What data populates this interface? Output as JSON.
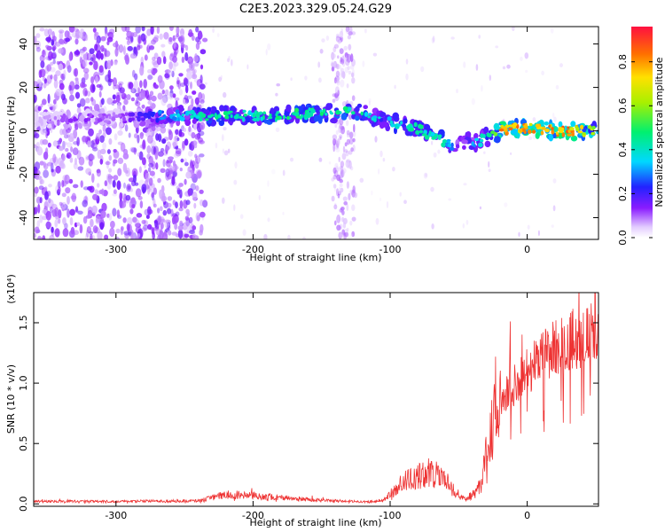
{
  "title": "C2E3.2023.329.05.24.G29",
  "chart_data": [
    {
      "type": "heatmap",
      "xlabel": "Height of straight line (km)",
      "ylabel": "Frequency (Hz)",
      "xlim": [
        -360,
        52
      ],
      "ylim": [
        -50,
        48
      ],
      "xticks": [
        -300,
        -200,
        -100,
        0
      ],
      "yticks": [
        -40,
        -20,
        0,
        20,
        40
      ],
      "colorbar": {
        "label": "Normalized spectral amplitude",
        "range": [
          0.0,
          0.96
        ],
        "ticks": [
          0.0,
          0.2,
          0.4,
          0.6,
          0.8
        ]
      },
      "signal_track": {
        "x": [
          -360,
          -330,
          -300,
          -260,
          -240,
          -220,
          -200,
          -180,
          -160,
          -140,
          -125,
          -110,
          -100,
          -90,
          -80,
          -70,
          -60,
          -55,
          -50,
          -45,
          -40,
          -35,
          -30,
          -20,
          -10,
          0,
          10,
          20,
          30,
          40,
          52
        ],
        "freq": [
          5,
          5,
          6,
          7,
          7,
          7,
          7,
          7,
          8,
          8,
          9,
          6,
          4,
          3,
          1,
          -2,
          -5,
          -7,
          -5,
          -4,
          -6,
          -5,
          -3,
          0,
          1,
          1,
          1,
          0,
          0,
          0,
          1
        ],
        "amplitude": [
          0.05,
          0.15,
          0.1,
          0.35,
          0.45,
          0.5,
          0.45,
          0.5,
          0.5,
          0.5,
          0.5,
          0.4,
          0.4,
          0.45,
          0.5,
          0.45,
          0.45,
          0.3,
          0.3,
          0.35,
          0.35,
          0.4,
          0.45,
          0.85,
          0.9,
          0.85,
          0.85,
          0.9,
          0.9,
          0.75,
          0.65
        ]
      }
    },
    {
      "type": "line",
      "xlabel": "Height of straight line (km)",
      "ylabel": "SNR (10 * v/v)",
      "y_scale_label": "(x10⁴)",
      "xlim": [
        -360,
        52
      ],
      "ylim": [
        -200,
        17500
      ],
      "xticks": [
        -300,
        -200,
        -100,
        0
      ],
      "yticks": [
        0,
        5000,
        10000,
        15000
      ],
      "ytick_labels": [
        "0.0",
        "0.5",
        "1.0",
        "1.5"
      ],
      "color": "#ee3333",
      "envelope": {
        "x": [
          -360,
          -300,
          -240,
          -220,
          -200,
          -150,
          -120,
          -105,
          -100,
          -90,
          -80,
          -70,
          -60,
          -50,
          -45,
          -40,
          -35,
          -30,
          -25,
          -20,
          -15,
          -10,
          -5,
          0,
          10,
          20,
          30,
          40,
          52
        ],
        "y": [
          250,
          250,
          300,
          900,
          800,
          350,
          200,
          300,
          1000,
          2200,
          2600,
          3200,
          2400,
          900,
          500,
          900,
          1800,
          4500,
          7800,
          9500,
          10000,
          10300,
          11200,
          12000,
          13000,
          14000,
          14600,
          15000,
          15200
        ]
      }
    }
  ]
}
